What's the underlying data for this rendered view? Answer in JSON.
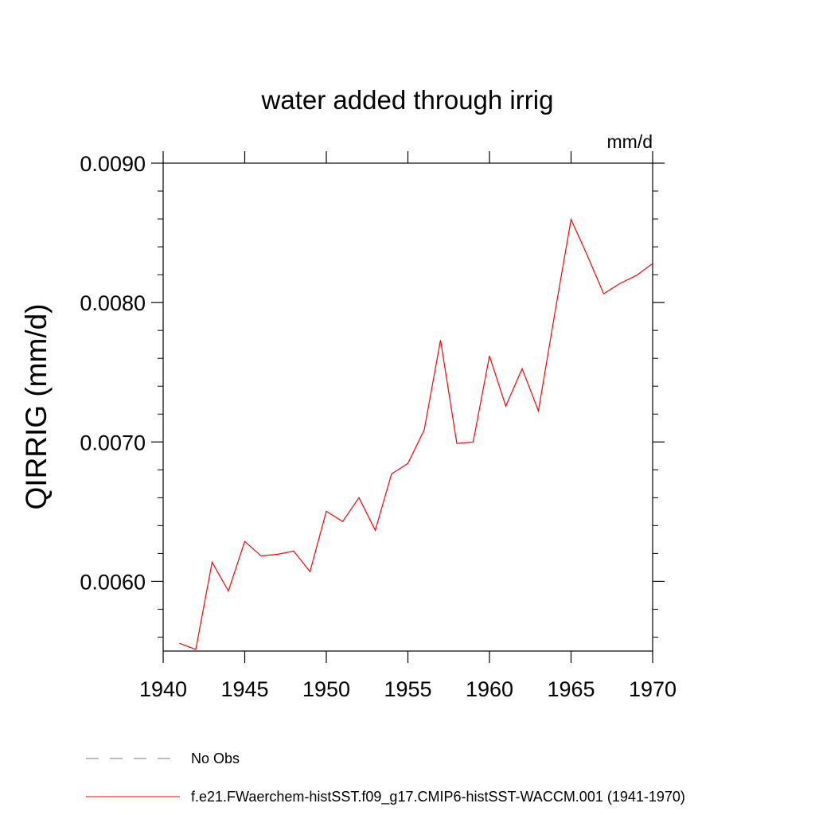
{
  "chart_data": {
    "type": "line",
    "title": "water added through irrig",
    "units": "mm/d",
    "ylabel": "QIRRIG  (mm/d)",
    "xlabel": "",
    "xlim": [
      1940,
      1970
    ],
    "ylim": [
      0.0055,
      0.009
    ],
    "x_ticks": [
      1940,
      1945,
      1950,
      1955,
      1960,
      1965,
      1970
    ],
    "x_tick_labels": [
      "1940",
      "1945",
      "1950",
      "1955",
      "1960",
      "1965",
      "1970"
    ],
    "y_ticks": [
      0.006,
      0.007,
      0.008,
      0.009
    ],
    "y_tick_labels": [
      "0.0060",
      "0.0070",
      "0.0080",
      "0.0090"
    ],
    "grid": false,
    "legend_position": "bottom",
    "series": [
      {
        "name": "No Obs",
        "color": "#7b6fc0",
        "style": "dashed",
        "x": [],
        "y": []
      },
      {
        "name": "f.e21.FWaerchem-histSST.f09_g17.CMIP6-histSST-WACCM.001 (1941-1970)",
        "color": "#ff0000",
        "style": "solid",
        "x": [
          1941,
          1942,
          1943,
          1944,
          1945,
          1946,
          1947,
          1948,
          1949,
          1950,
          1951,
          1952,
          1953,
          1954,
          1955,
          1956,
          1957,
          1958,
          1959,
          1960,
          1961,
          1962,
          1963,
          1964,
          1965,
          1966,
          1967,
          1968,
          1969,
          1970
        ],
        "y": [
          0.005556,
          0.005511,
          0.006137,
          0.005931,
          0.006286,
          0.006183,
          0.006194,
          0.006217,
          0.006069,
          0.006503,
          0.006429,
          0.0066,
          0.006366,
          0.006771,
          0.006846,
          0.007086,
          0.007731,
          0.006989,
          0.007,
          0.007617,
          0.007257,
          0.007526,
          0.007223,
          0.00792,
          0.008597,
          0.008337,
          0.008063,
          0.008137,
          0.008194,
          0.00828
        ]
      }
    ]
  }
}
